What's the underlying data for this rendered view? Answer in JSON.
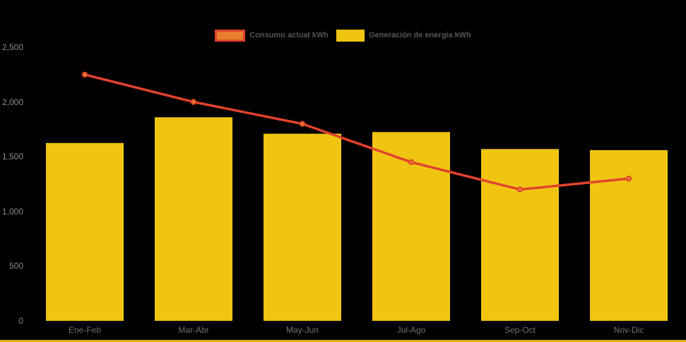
{
  "chart_data": {
    "type": "bar",
    "subtype": "combo-bar-line",
    "title": "",
    "xlabel": "",
    "ylabel": "",
    "categories": [
      "Ene-Feb",
      "Mar-Abr",
      "May-Jun",
      "Jul-Ago",
      "Sep-Oct",
      "Nov-Dic"
    ],
    "series": [
      {
        "name": "Consumo actual kWh",
        "type": "line",
        "values": [
          2250,
          2000,
          1800,
          1450,
          1200,
          1300
        ],
        "color": "#E2432C",
        "marker_color": "#E87E2E"
      },
      {
        "name": "Generación de energía kWh",
        "type": "bar",
        "values": [
          1625,
          1860,
          1710,
          1725,
          1570,
          1560
        ],
        "color": "#F0C512"
      }
    ],
    "ylim": [
      0,
      2500
    ],
    "y_ticks": [
      {
        "value": 0,
        "label": "0"
      },
      {
        "value": 500,
        "label": "500"
      },
      {
        "value": 1000,
        "label": "1,000"
      },
      {
        "value": 1500,
        "label": "1,500"
      },
      {
        "value": 2000,
        "label": "2,000"
      },
      {
        "value": 2500,
        "label": "2,500"
      }
    ],
    "grid": "off",
    "legend_position": "top-center"
  },
  "colors": {
    "background": "#000000",
    "bar": "#F0C512",
    "line": "#E2432C",
    "marker": "#E87E2E",
    "axis_text_y": "#8a8a8a",
    "axis_text_x": "#737373",
    "legend_text": "#565656",
    "bottom_strip": "#D9B10D"
  }
}
